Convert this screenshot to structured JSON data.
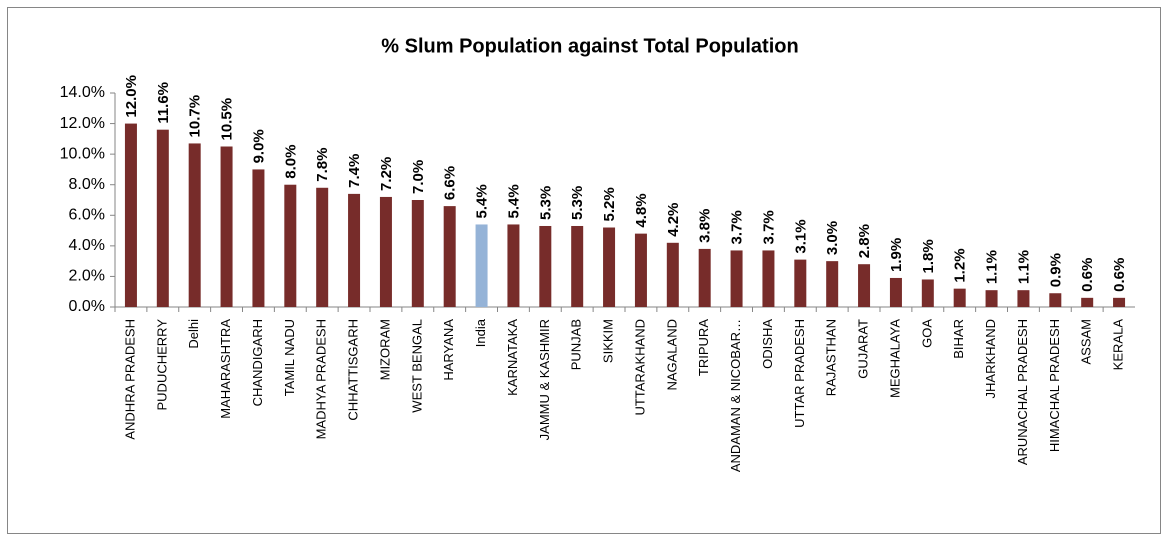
{
  "chart_data": {
    "type": "bar",
    "title": "% Slum Population against Total Population",
    "categories": [
      "ANDHRA PRADESH",
      "PUDUCHERRY",
      "Delhi",
      "MAHARASHTRA",
      "CHANDIGARH",
      "TAMIL NADU",
      "MADHYA PRADESH",
      "CHHATTISGARH",
      "MIZORAM",
      "WEST BENGAL",
      "HARYANA",
      "India",
      "KARNATAKA",
      "JAMMU & KASHMIR",
      "PUNJAB",
      "SIKKIM",
      "UTTARAKHAND",
      "NAGALAND",
      "TRIPURA",
      "ANDAMAN & NICOBAR…",
      "ODISHA",
      "UTTAR PRADESH",
      "RAJASTHAN",
      "GUJARAT",
      "MEGHALAYA",
      "GOA",
      "BIHAR",
      "JHARKHAND",
      "ARUNACHAL PRADESH",
      "HIMACHAL PRADESH",
      "ASSAM",
      "KERALA"
    ],
    "values": [
      12.0,
      11.6,
      10.7,
      10.5,
      9.0,
      8.0,
      7.8,
      7.4,
      7.2,
      7.0,
      6.6,
      5.4,
      5.4,
      5.3,
      5.3,
      5.2,
      4.8,
      4.2,
      3.8,
      3.7,
      3.7,
      3.1,
      3.0,
      2.8,
      1.9,
      1.8,
      1.2,
      1.1,
      1.1,
      0.9,
      0.6,
      0.6
    ],
    "value_labels": [
      "12.0%",
      "11.6%",
      "10.7%",
      "10.5%",
      "9.0%",
      "8.0%",
      "7.8%",
      "7.4%",
      "7.2%",
      "7.0%",
      "6.6%",
      "5.4%",
      "5.4%",
      "5.3%",
      "5.3%",
      "5.2%",
      "4.8%",
      "4.2%",
      "3.8%",
      "3.7%",
      "3.7%",
      "3.1%",
      "3.0%",
      "2.8%",
      "1.9%",
      "1.8%",
      "1.2%",
      "1.1%",
      "1.1%",
      "0.9%",
      "0.6%",
      "0.6%"
    ],
    "colors": [
      "#772c2a",
      "#772c2a",
      "#772c2a",
      "#772c2a",
      "#772c2a",
      "#772c2a",
      "#772c2a",
      "#772c2a",
      "#772c2a",
      "#772c2a",
      "#772c2a",
      "#95b3d7",
      "#772c2a",
      "#772c2a",
      "#772c2a",
      "#772c2a",
      "#772c2a",
      "#772c2a",
      "#772c2a",
      "#772c2a",
      "#772c2a",
      "#772c2a",
      "#772c2a",
      "#772c2a",
      "#772c2a",
      "#772c2a",
      "#772c2a",
      "#772c2a",
      "#772c2a",
      "#772c2a",
      "#772c2a",
      "#772c2a"
    ],
    "ylim": [
      0,
      14
    ],
    "yticks": [
      {
        "value": 0,
        "label": "0.0%"
      },
      {
        "value": 2,
        "label": "2.0%"
      },
      {
        "value": 4,
        "label": "4.0%"
      },
      {
        "value": 6,
        "label": "6.0%"
      },
      {
        "value": 8,
        "label": "8.0%"
      },
      {
        "value": 10,
        "label": "10.0%"
      },
      {
        "value": 12,
        "label": "12.0%"
      },
      {
        "value": 14,
        "label": "14.0%"
      }
    ],
    "grid": false
  }
}
